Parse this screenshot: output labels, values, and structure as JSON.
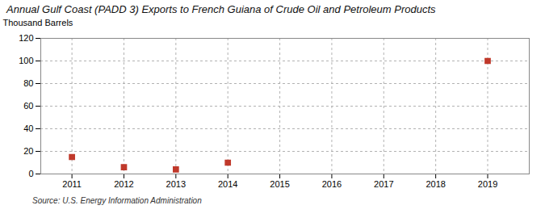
{
  "chart_data": {
    "type": "scatter",
    "title": "Annual Gulf Coast (PADD 3) Exports to French Guiana of Crude Oil and Petroleum Products",
    "ylabel": "Thousand Barrels",
    "source": "Source: U.S. Energy Information Administration",
    "x": [
      2011,
      2012,
      2013,
      2014,
      2015,
      2016,
      2017,
      2018,
      2019
    ],
    "values": [
      15,
      6,
      4,
      10,
      null,
      null,
      null,
      null,
      100
    ],
    "color": "#c0392b",
    "marker": "square",
    "xlim": [
      2010.4,
      2019.8
    ],
    "xticks": [
      2011,
      2012,
      2013,
      2014,
      2015,
      2016,
      2017,
      2018,
      2019
    ],
    "ylim": [
      0,
      120
    ],
    "yticks": [
      0,
      20,
      40,
      60,
      80,
      100,
      120
    ],
    "grid": true
  }
}
